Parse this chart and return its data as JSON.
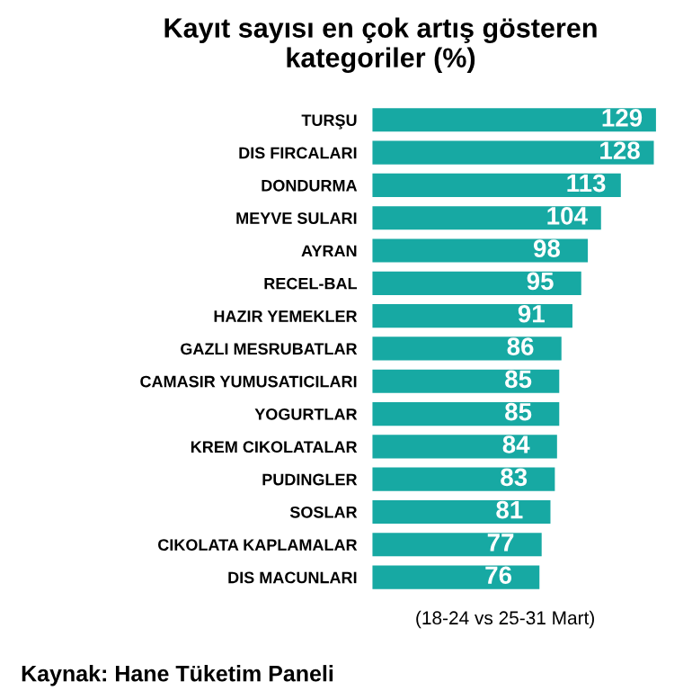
{
  "chart_data": {
    "type": "bar",
    "orientation": "horizontal",
    "title": "Kayıt sayısı en çok artış gösteren\nkategoriler (%)",
    "categories": [
      "TURŞU",
      "DIS FIRCALARI",
      "DONDURMA",
      "MEYVE SULARI",
      "AYRAN",
      "RECEL-BAL",
      "HAZIR YEMEKLER",
      "GAZLI MESRUBATLAR",
      "CAMASIR YUMUSATICILARI",
      "YOGURTLAR",
      "KREM CIKOLATALAR",
      "PUDINGLER",
      "SOSLAR",
      "CIKOLATA KAPLAMALAR",
      "DIS MACUNLARI"
    ],
    "values": [
      129,
      128,
      113,
      104,
      98,
      95,
      91,
      86,
      85,
      85,
      84,
      83,
      81,
      77,
      76
    ],
    "color": "#17a9a3",
    "data_labels": true,
    "tick_labels": "y",
    "grid": false,
    "legend": false,
    "annotations": [
      "(18-24 vs 25-31 Mart)",
      "Kaynak: Hane Tüketim Paneli"
    ]
  }
}
